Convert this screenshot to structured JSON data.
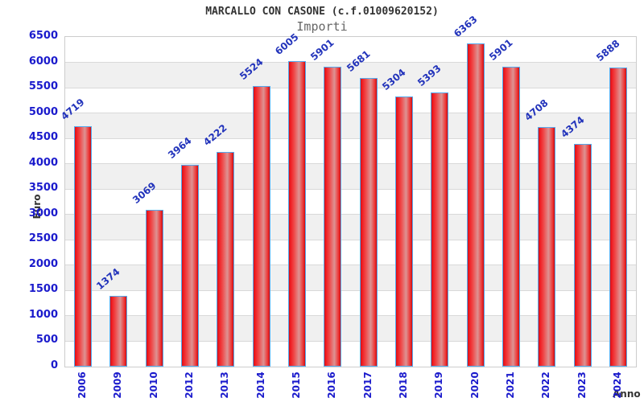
{
  "header": {
    "title": "MARCALLO CON CASONE (c.f.01009620152)",
    "subtitle": "Importi"
  },
  "chart_data": {
    "type": "bar",
    "title": "MARCALLO CON CASONE (c.f.01009620152)",
    "subtitle": "Importi",
    "xlabel": "Anno",
    "ylabel": "Euro",
    "categories": [
      "2006",
      "2009",
      "2010",
      "2012",
      "2013",
      "2014",
      "2015",
      "2016",
      "2017",
      "2018",
      "2019",
      "2020",
      "2021",
      "2022",
      "2023",
      "2024"
    ],
    "values": [
      4719,
      1374,
      3069,
      3964,
      4222,
      5524,
      6005,
      5901,
      5681,
      5304,
      5393,
      6363,
      5901,
      4708,
      4374,
      5888
    ],
    "ylim": [
      0,
      6500
    ],
    "ytick_step": 500,
    "grid": true,
    "legend": false,
    "value_labels_rotation_deg": -40,
    "xtick_rotation_deg": -90,
    "colors": {
      "bar_fill": "#ee2222",
      "bar_fill_mid": "#dd9393",
      "bar_border": "#55aaee",
      "tick_label": "#1a1acc",
      "value_label": "#2233bb",
      "axis_title": "#333333",
      "title": "#333333",
      "subtitle": "#666666",
      "band_alt": "#f0f0f0",
      "band_main": "#ffffff",
      "gridline": "#d9d9d9",
      "plot_border": "#cccccc"
    }
  }
}
